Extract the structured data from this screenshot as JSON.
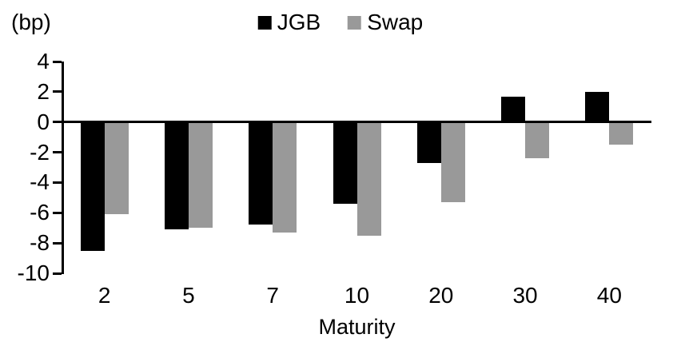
{
  "chart_data": {
    "type": "bar",
    "unit_label": "(bp)",
    "xlabel": "Maturity",
    "categories": [
      "2",
      "5",
      "7",
      "10",
      "20",
      "30",
      "40"
    ],
    "series": [
      {
        "name": "JGB",
        "color": "#000000",
        "values": [
          -8.5,
          -7.1,
          -6.8,
          -5.4,
          -2.7,
          1.7,
          2.0
        ]
      },
      {
        "name": "Swap",
        "color": "#999999",
        "values": [
          -6.1,
          -7.0,
          -7.3,
          -7.5,
          -5.3,
          -2.4,
          -1.5
        ]
      }
    ],
    "ylim": [
      -10,
      4
    ],
    "yticks": [
      4,
      2,
      0,
      -2,
      -4,
      -6,
      -8,
      -10
    ],
    "legend_position": "top",
    "grid": false,
    "background": "#ffffff",
    "axis_color": "#000000"
  }
}
